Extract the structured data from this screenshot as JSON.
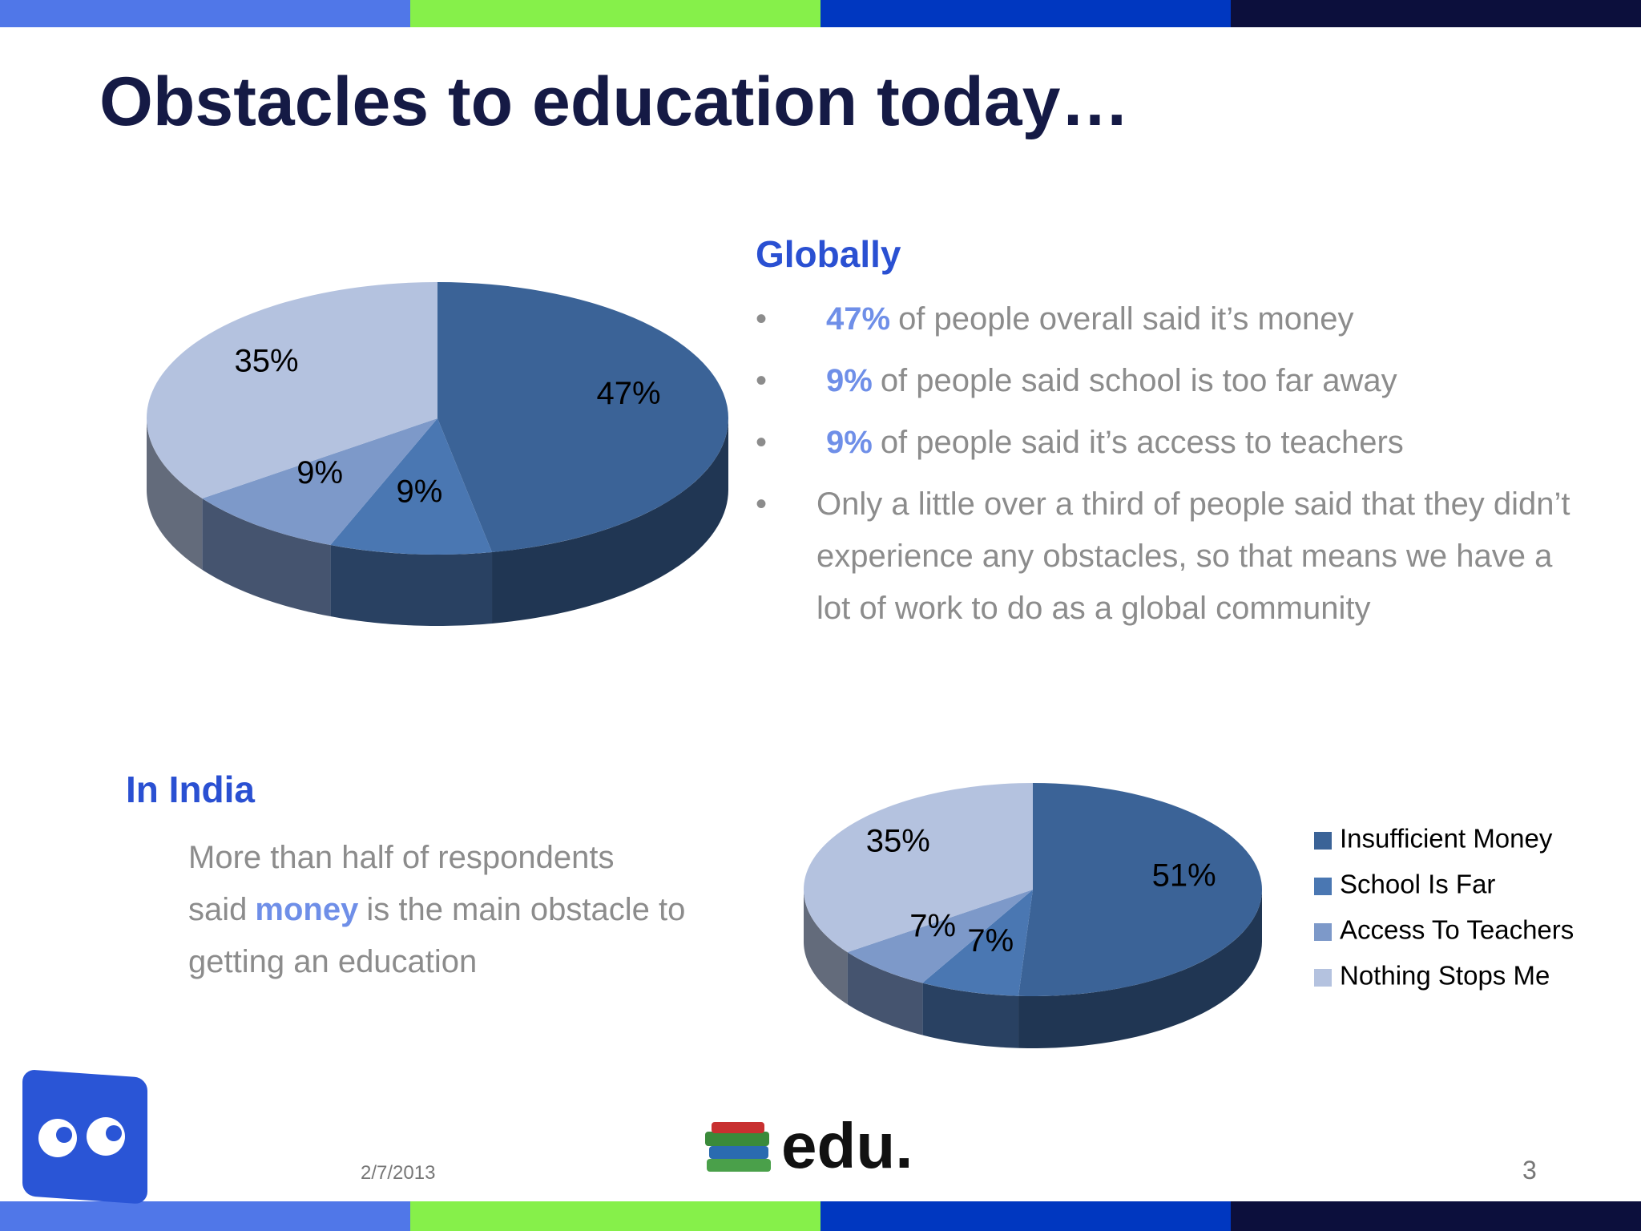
{
  "header": {
    "title": "Obstacles to education today…"
  },
  "globally": {
    "heading": "Globally",
    "bullets": [
      {
        "highlight": "47%",
        "text": "of people overall said it’s money"
      },
      {
        "highlight": "9%",
        "text": "of people said school is too far away"
      },
      {
        "highlight": "9%",
        "text": "of people said it’s access to teachers"
      },
      {
        "text": "Only a little over a third of people said that they didn’t experience any obstacles, so that means we have a lot of work to do as a global community"
      }
    ]
  },
  "india": {
    "heading": "In India",
    "text_before": "More than half of respondents said",
    "highlight": "money",
    "text_after": "is the main obstacle to getting an education"
  },
  "footer": {
    "date": "2/7/2013",
    "logo_text": "edu.",
    "page": "3"
  },
  "chart_data": [
    {
      "type": "pie",
      "values": [
        47,
        9,
        9,
        35
      ],
      "value_labels": [
        "47%",
        "9%",
        "9%",
        "35%"
      ],
      "colors": [
        "#3b6397",
        "#4a77b2",
        "#7d99c9",
        "#b4c2df"
      ],
      "legend": false
    },
    {
      "type": "pie",
      "categories": [
        "Insufficient Money",
        "School Is Far",
        "Access To Teachers",
        "Nothing Stops Me"
      ],
      "values": [
        51,
        7,
        7,
        35
      ],
      "value_labels": [
        "51%",
        "7%",
        "7%",
        "35%"
      ],
      "colors": [
        "#3b6397",
        "#4a77b2",
        "#7d99c9",
        "#b4c2df"
      ],
      "legend": "right"
    }
  ]
}
